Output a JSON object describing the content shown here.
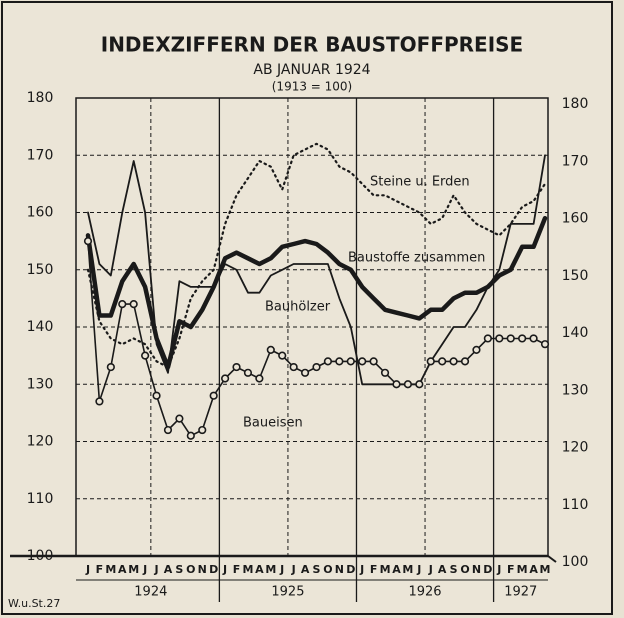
{
  "chart_data": {
    "type": "line",
    "title": "INDEXZIFFERN DER BAUSTOFFPREISE",
    "subtitle": "AB JANUAR 1924",
    "subtitle2": "(1913 = 100)",
    "source": "W.u.St.27",
    "categories": [
      "J",
      "F",
      "M",
      "A",
      "M",
      "J",
      "J",
      "A",
      "S",
      "O",
      "N",
      "D",
      "J",
      "F",
      "M",
      "A",
      "M",
      "J",
      "J",
      "A",
      "S",
      "O",
      "N",
      "D",
      "J",
      "F",
      "M",
      "A",
      "M",
      "J",
      "J",
      "A",
      "S",
      "O",
      "N",
      "D",
      "J",
      "F",
      "M",
      "A",
      "M"
    ],
    "year_groups": [
      {
        "name": "1924",
        "months": 12
      },
      {
        "name": "1925",
        "months": 12
      },
      {
        "name": "1926",
        "months": 12
      },
      {
        "name": "1927",
        "months": 5
      }
    ],
    "ylim": [
      100,
      180
    ],
    "yticks": [
      100,
      110,
      120,
      130,
      140,
      150,
      160,
      170,
      180
    ],
    "y2lim": [
      100,
      180
    ],
    "y2ticks": [
      100,
      110,
      120,
      130,
      140,
      150,
      160,
      170,
      180
    ],
    "grid": true,
    "series": [
      {
        "name": "Steine u. Erden",
        "color": "#1a1a1a",
        "style": "dotted",
        "values": [
          150,
          141,
          138,
          137,
          138,
          137,
          134,
          133,
          138,
          145,
          148,
          150,
          158,
          163,
          166,
          169,
          168,
          164,
          170,
          171,
          172,
          171,
          168,
          167,
          165,
          163,
          163,
          162,
          161,
          160,
          158,
          159,
          163,
          160,
          158,
          157,
          156,
          158,
          161,
          162,
          165
        ]
      },
      {
        "name": "Baustoffe zusammen",
        "color": "#1a1a1a",
        "style": "thick",
        "values": [
          156,
          142,
          142,
          148,
          151,
          147,
          138,
          133,
          141,
          140,
          143,
          147,
          152,
          153,
          152,
          151,
          152,
          154,
          154.5,
          155,
          154.5,
          153,
          151,
          150,
          147,
          145,
          143,
          142.5,
          142,
          141.5,
          143,
          143,
          145,
          146,
          146,
          147,
          149,
          150,
          154,
          154,
          159
        ]
      },
      {
        "name": "Bauhölzer",
        "color": "#1a1a1a",
        "style": "thin",
        "values": [
          160,
          151,
          149,
          160,
          169,
          160,
          137,
          132,
          148,
          147,
          147,
          147,
          151,
          150,
          146,
          146,
          149,
          150,
          151,
          151,
          151,
          151,
          145,
          140,
          130,
          130,
          130,
          130,
          130,
          130,
          134,
          137,
          140,
          140,
          143,
          147,
          150,
          158,
          158,
          158,
          170
        ]
      },
      {
        "name": "Baueisen",
        "color": "#1a1a1a",
        "style": "circles",
        "values": [
          155,
          127,
          133,
          144,
          144,
          135,
          128,
          122,
          124,
          121,
          122,
          128,
          131,
          133,
          132,
          131,
          136,
          135,
          133,
          132,
          133,
          134,
          134,
          134,
          134,
          134,
          132,
          130,
          130,
          130,
          134,
          134,
          134,
          134,
          136,
          138,
          138,
          138,
          138,
          138,
          137
        ]
      }
    ]
  }
}
